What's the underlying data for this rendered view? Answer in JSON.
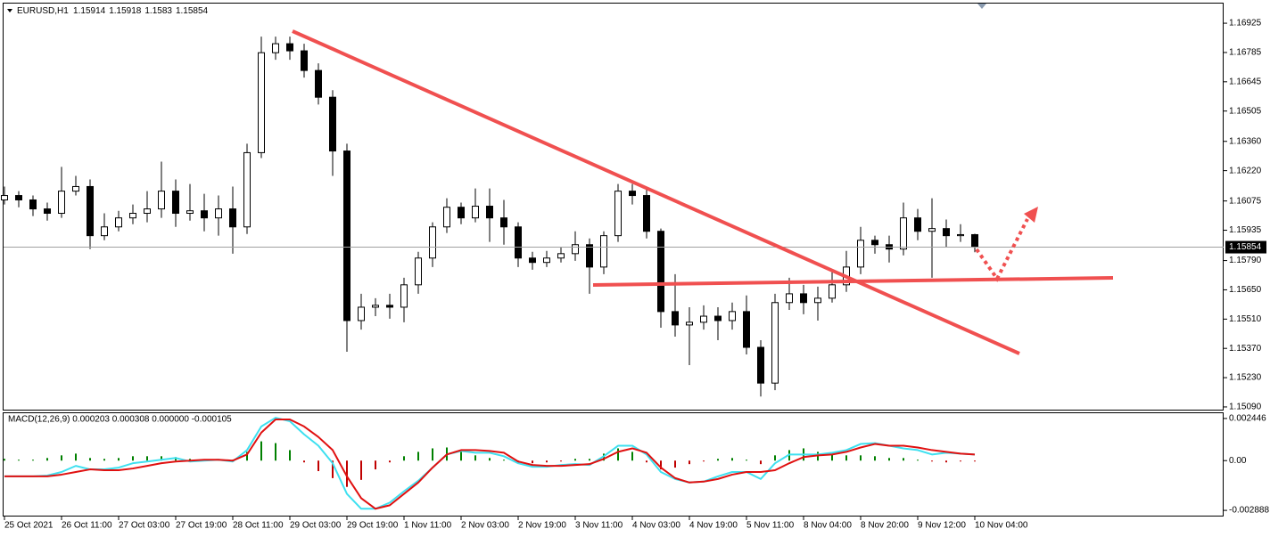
{
  "chart_data": [
    {
      "type": "candlestick",
      "title": "EURUSD,H1",
      "color": "#000000",
      "grid": false,
      "categories": [
        "25 Oct 2021",
        null,
        null,
        null,
        "26 Oct 11:00",
        null,
        null,
        null,
        "27 Oct 03:00",
        null,
        null,
        null,
        "27 Oct 19:00",
        null,
        null,
        null,
        "28 Oct 11:00",
        null,
        null,
        null,
        "29 Oct 03:00",
        null,
        null,
        null,
        "29 Oct 19:00",
        null,
        null,
        null,
        "1 Nov 11:00",
        null,
        null,
        null,
        "2 Nov 03:00",
        null,
        null,
        null,
        "2 Nov 19:00",
        null,
        null,
        null,
        "3 Nov 11:00",
        null,
        null,
        null,
        "4 Nov 03:00",
        null,
        null,
        null,
        "4 Nov 19:00",
        null,
        null,
        null,
        "5 Nov 11:00",
        null,
        null,
        null,
        "8 Nov 04:00",
        null,
        null,
        null,
        "8 Nov 20:00",
        null,
        null,
        null,
        "9 Nov 12:00",
        null,
        null,
        null,
        "10 Nov 04:00"
      ],
      "open": [
        1.1608,
        1.16101,
        1.1608,
        1.16037,
        1.16016,
        1.16122,
        1.16144,
        1.15909,
        1.15951,
        1.15994,
        1.16016,
        1.16037,
        1.16122,
        1.16016,
        1.16028,
        1.15994,
        1.16037,
        1.15951,
        1.16306,
        1.16784,
        1.16827,
        1.16793,
        1.16699,
        1.16571,
        1.16314,
        1.15503,
        1.15567,
        1.15576,
        1.15567,
        1.15674,
        1.15802,
        1.15951,
        1.16045,
        1.15994,
        1.1605,
        1.15994,
        1.15951,
        1.15802,
        1.15781,
        1.15802,
        1.15823,
        1.15866,
        1.15759,
        1.15909,
        1.16122,
        1.16101,
        1.1593,
        1.15546,
        1.15482,
        1.15495,
        1.15524,
        1.15503,
        1.15546,
        1.15375,
        1.15204,
        1.15589,
        1.15631,
        1.15589,
        1.1561,
        1.15674,
        1.15759,
        1.15887,
        1.15866,
        1.15845,
        1.15994,
        1.1593,
        1.15943,
        1.15909,
        1.15914
      ],
      "high": [
        1.16144,
        1.16122,
        1.16101,
        1.16067,
        1.16238,
        1.16195,
        1.16178,
        1.16016,
        1.16028,
        1.16058,
        1.16122,
        1.16263,
        1.16178,
        1.16156,
        1.16109,
        1.16101,
        1.16144,
        1.16349,
        1.16861,
        1.16861,
        1.16861,
        1.16827,
        1.16733,
        1.16605,
        1.16349,
        1.15631,
        1.1561,
        1.15631,
        1.15708,
        1.15832,
        1.15973,
        1.16088,
        1.16067,
        1.16135,
        1.16135,
        1.1608,
        1.15973,
        1.15832,
        1.15836,
        1.15853,
        1.1593,
        1.15896,
        1.1593,
        1.16156,
        1.16156,
        1.16135,
        1.15943,
        1.15725,
        1.15567,
        1.15576,
        1.15567,
        1.15589,
        1.15623,
        1.15409,
        1.15631,
        1.15708,
        1.15674,
        1.15665,
        1.15746,
        1.15836,
        1.15951,
        1.15909,
        1.15909,
        1.16067,
        1.16037,
        1.16088,
        1.15986,
        1.15964,
        1.15918
      ],
      "low": [
        1.16058,
        1.16045,
        1.16003,
        1.15981,
        1.15994,
        1.16101,
        1.15845,
        1.15887,
        1.1593,
        1.15964,
        1.15973,
        1.15994,
        1.15951,
        1.15981,
        1.1593,
        1.15909,
        1.15823,
        1.15917,
        1.1628,
        1.1675,
        1.1675,
        1.16665,
        1.16536,
        1.16195,
        1.15354,
        1.1546,
        1.15524,
        1.15512,
        1.15495,
        1.15631,
        1.15759,
        1.15922,
        1.15964,
        1.15973,
        1.15879,
        1.15866,
        1.15759,
        1.15746,
        1.15759,
        1.15781,
        1.15789,
        1.15631,
        1.15725,
        1.15879,
        1.16058,
        1.15896,
        1.15469,
        1.15426,
        1.1529,
        1.1546,
        1.15409,
        1.1546,
        1.15341,
        1.1514,
        1.1517,
        1.15554,
        1.15533,
        1.15503,
        1.15589,
        1.1564,
        1.15725,
        1.15823,
        1.15781,
        1.15815,
        1.15887,
        1.15708,
        1.15853,
        1.15879,
        1.1583
      ],
      "close": [
        1.16101,
        1.1608,
        1.16037,
        1.16016,
        1.16122,
        1.16144,
        1.15909,
        1.15951,
        1.15994,
        1.16016,
        1.16037,
        1.16122,
        1.16016,
        1.16028,
        1.15994,
        1.16037,
        1.15951,
        1.16306,
        1.16784,
        1.16827,
        1.16793,
        1.16699,
        1.16571,
        1.16314,
        1.15503,
        1.15567,
        1.15576,
        1.15567,
        1.15674,
        1.15802,
        1.15951,
        1.16045,
        1.15994,
        1.1605,
        1.15994,
        1.15951,
        1.15802,
        1.15781,
        1.15802,
        1.15823,
        1.15866,
        1.15759,
        1.15909,
        1.16122,
        1.16101,
        1.1593,
        1.15546,
        1.15482,
        1.15495,
        1.15524,
        1.15503,
        1.15546,
        1.15375,
        1.15204,
        1.15589,
        1.15631,
        1.15589,
        1.1561,
        1.15674,
        1.15759,
        1.15887,
        1.15866,
        1.15845,
        1.15994,
        1.1593,
        1.15943,
        1.15909,
        1.15914,
        1.15854
      ],
      "ylim": [
        1.15077,
        1.17019
      ],
      "yticks": [
        1.16925,
        1.16785,
        1.16645,
        1.16505,
        {
          "value": 1.1636,
          "label": "1.16360"
        },
        {
          "value": 1.1622,
          "label": "1.16220"
        },
        1.16075,
        1.15935,
        {
          "value": 1.1579,
          "label": "1.15790"
        },
        {
          "value": 1.1565,
          "label": "1.15650"
        },
        {
          "value": 1.1551,
          "label": "1.15510"
        },
        {
          "value": 1.1537,
          "label": "1.15370"
        },
        {
          "value": 1.1523,
          "label": "1.15230"
        },
        {
          "value": 1.1509,
          "label": "1.15090"
        }
      ]
    },
    {
      "type": "macd",
      "title": "MACD(12,26,9) 0.000203 0.000308 0.000000 -0.000105",
      "ylim": [
        -0.003193,
        0.002751
      ],
      "yticks": [
        0.002446,
        {
          "value": 0,
          "label": "0.00"
        },
        -0.002888
      ],
      "series": [
        {
          "type": "bar",
          "color": "#008000",
          "negative_color": "#c00000",
          "values": [
            0.000102,
            5.1e-05,
            5.1e-05,
            0.000152,
            0.000305,
            0.000406,
            0.000152,
            0.000102,
            0.000152,
            0.000254,
            0.000254,
            0.000254,
            0.000203,
            0.000102,
            5.1e-05,
            5.1e-05,
            5.1e-05,
            0.000508,
            0.001118,
            0.001016,
            0.00061,
            -0.000102,
            -0.00061,
            -0.001016,
            -0.001524,
            -0.001118,
            -0.000508,
            -0.000102,
            0.000254,
            0.000508,
            0.000711,
            0.000762,
            0.00061,
            0.000305,
            0.000152,
            5.1e-05,
            -0.000152,
            -0.000152,
            -0.000102,
            -5.1e-05,
            0.000102,
            0.000102,
            0.000406,
            0.000711,
            0.000508,
            -0.000102,
            -0.000508,
            -0.000406,
            -0.000203,
            -5.1e-05,
            0.000102,
            0.000152,
            5.1e-05,
            -0.000203,
            0.000305,
            0.00061,
            0.000711,
            0.000508,
            0.000406,
            0.000305,
            0.000305,
            0.000254,
            0.000152,
            0.000152,
            5.1e-05,
            -5.1e-05,
            -0.000102,
            -5.1e-05,
            -5.1e-05
          ]
        },
        {
          "type": "line",
          "color": "#3ee0f0",
          "values": [
            -0.000914,
            -0.000914,
            -0.000914,
            -0.000864,
            -0.00066,
            -0.000305,
            -0.000508,
            -0.000508,
            -0.000406,
            -0.000152,
            -5.1e-05,
            5.1e-05,
            0.000152,
            -5.1e-05,
            0,
            5.1e-05,
            -5.1e-05,
            0.00061,
            0.001981,
            0.002489,
            0.002286,
            0.001524,
            0.000864,
            -0.000152,
            -0.00193,
            -0.002794,
            -0.002794,
            -0.002438,
            -0.001778,
            -0.001168,
            -0.000406,
            0.000356,
            0.000559,
            0.000457,
            0.000457,
            0.000254,
            -0.000152,
            -0.000356,
            -0.000356,
            -0.000254,
            -0.000203,
            -0.000254,
            0.000254,
            0.000864,
            0.000864,
            0.000356,
            -0.00066,
            -0.001067,
            -0.00127,
            -0.001219,
            -0.000914,
            -0.00066,
            -0.00066,
            -0.001067,
            -0.000152,
            0.000356,
            0.000356,
            0.000356,
            0.000457,
            0.00061,
            0.000965,
            0.001016,
            0.000864,
            0.000711,
            0.00061,
            0.000356,
            0.000457,
            0.000406,
            0.000356
          ]
        },
        {
          "type": "line",
          "color": "#e01010",
          "values": [
            -0.000914,
            -0.000914,
            -0.000914,
            -0.000914,
            -0.000813,
            -0.00066,
            -0.000508,
            -0.000559,
            -0.000559,
            -0.000457,
            -0.000305,
            -0.000152,
            -5.1e-05,
            0,
            5.1e-05,
            5.1e-05,
            0,
            0.000356,
            0.001626,
            0.002388,
            0.002388,
            0.001981,
            0.001372,
            0.00061,
            -0.000914,
            -0.002184,
            -0.002794,
            -0.002591,
            -0.00193,
            -0.00127,
            -0.000406,
            0.000356,
            0.00061,
            0.00061,
            0.000559,
            0.000457,
            -5.1e-05,
            -0.000254,
            -0.000305,
            -0.000305,
            -0.000254,
            -0.000203,
            0.000102,
            0.000508,
            0.000711,
            0.000457,
            -0.000406,
            -0.001016,
            -0.00127,
            -0.001219,
            -0.001067,
            -0.000813,
            -0.00066,
            -0.00066,
            -0.000559,
            -0.000152,
            0.000203,
            0.000305,
            0.000356,
            0.000508,
            0.000762,
            0.000965,
            0.000864,
            0.000864,
            0.000762,
            0.00061,
            0.000508,
            0.000406,
            0.000356
          ]
        }
      ]
    }
  ]
}
